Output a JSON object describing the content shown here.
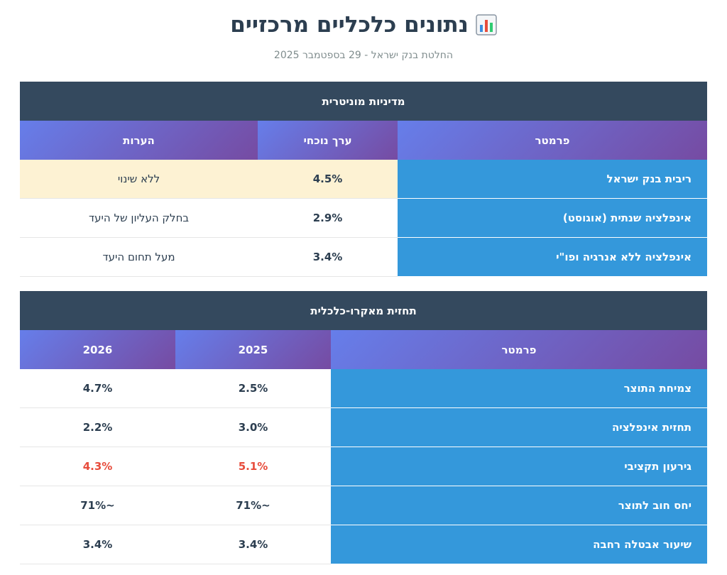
{
  "header": {
    "title": "נתונים כלכליים מרכזיים",
    "icon": "bar-chart-icon",
    "subtitle": "החלטת בנק ישראל - 29 בספטמבר 2025"
  },
  "colors": {
    "section_header": "#34495e",
    "column_header_gradient": [
      "#667eea",
      "#764ba2"
    ],
    "parameter_cell": "#3498db",
    "highlight_row": "#fdf2d3",
    "negative_value": "#e74c3c"
  },
  "monetary": {
    "section_title": "מדיניות מוניטרית",
    "columns": [
      "פרמטר",
      "ערך נוכחי",
      "הערות"
    ],
    "rows": [
      {
        "param": "ריבית בנק ישראל",
        "value": "4.5%",
        "note": "ללא שינוי",
        "highlight": true
      },
      {
        "param": "אינפלציה שנתית (אוגוסט)",
        "value": "2.9%",
        "note": "בחלק העליון של היעד",
        "highlight": false
      },
      {
        "param": "אינפלציה ללא אנרגיה ופו\"י",
        "value": "3.4%",
        "note": "מעל תחום היעד",
        "highlight": false
      }
    ]
  },
  "macro": {
    "section_title": "תחזית מאקרו-כלכלית",
    "columns": [
      "פרמטר",
      "2025",
      "2026"
    ],
    "rows": [
      {
        "param": "צמיחת התוצר",
        "y2025": "2.5%",
        "y2026": "4.7%",
        "negative": false
      },
      {
        "param": "תחזית אינפלציה",
        "y2025": "3.0%",
        "y2026": "2.2%",
        "negative": false
      },
      {
        "param": "גירעון תקציבי",
        "y2025": "5.1%",
        "y2026": "4.3%",
        "negative": true
      },
      {
        "param": "יחס חוב לתוצר",
        "y2025": "~71%",
        "y2026": "~71%",
        "negative": false
      },
      {
        "param": "שיעור אבטלה רחבה",
        "y2025": "3.4%",
        "y2026": "3.4%",
        "negative": false
      }
    ]
  }
}
